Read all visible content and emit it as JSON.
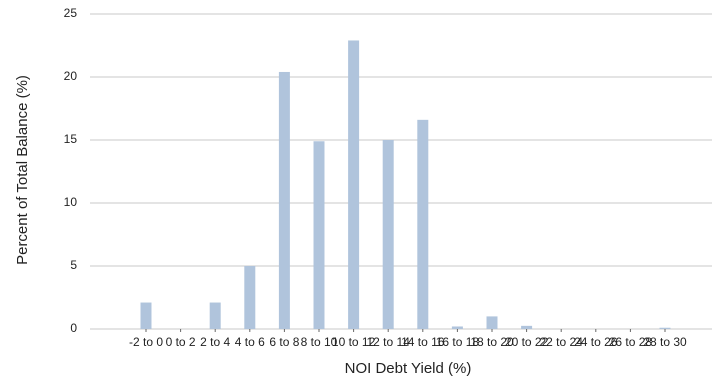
{
  "chart_data": {
    "type": "bar",
    "xlabel": "NOI Debt Yield (%)",
    "ylabel": "Percent of Total Balance (%)",
    "ylim": [
      0,
      25
    ],
    "yticks": [
      "0",
      "5",
      "10",
      "15",
      "20",
      "25"
    ],
    "grid": "horizontal",
    "bar_color": "#b0c4dc",
    "categories": [
      "-2 to 0",
      "0 to 2",
      "2 to 4",
      "4 to 6",
      "6 to 8",
      "8 to 10",
      "10 to 12",
      "12 to 14",
      "14 to 16",
      "16 to 18",
      "18 to 20",
      "20 to 22",
      "22 to 24",
      "24 to 26",
      "26 to 28",
      "28 to 30"
    ],
    "values": [
      2.1,
      0.0,
      2.1,
      5.0,
      20.4,
      14.9,
      22.9,
      15.0,
      16.6,
      0.2,
      1.0,
      0.25,
      0.0,
      0.0,
      0.0,
      0.1
    ]
  }
}
